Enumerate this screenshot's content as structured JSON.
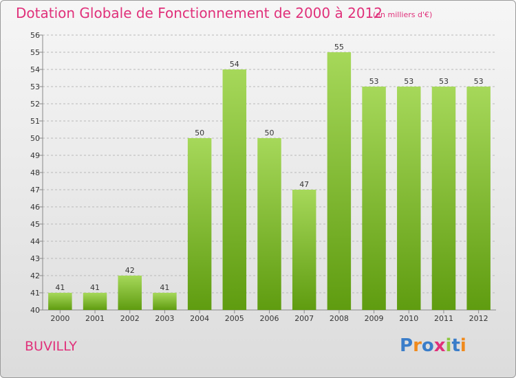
{
  "title": "Dotation Globale de Fonctionnement de 2000 à 2012",
  "subtitle": "(en milliers d'€)",
  "commune": "BUVILLY",
  "logo": {
    "text": "Proxiti",
    "letters": [
      {
        "ch": "P",
        "color": "#3a7dc9"
      },
      {
        "ch": "r",
        "color": "#f08a1c"
      },
      {
        "ch": "o",
        "color": "#3a7dc9"
      },
      {
        "ch": "x",
        "color": "#e0307a"
      },
      {
        "ch": "i",
        "color": "#8dc63f"
      },
      {
        "ch": "t",
        "color": "#3a7dc9"
      },
      {
        "ch": "i",
        "color": "#f08a1c"
      }
    ]
  },
  "colors": {
    "bar_top": "#a6d85a",
    "bar_bottom": "#5f9c10",
    "grid": "#b8b8b8",
    "title": "#e0307a"
  },
  "chart_data": {
    "type": "bar",
    "categories": [
      "2000",
      "2001",
      "2002",
      "2003",
      "2004",
      "2005",
      "2006",
      "2007",
      "2008",
      "2009",
      "2010",
      "2011",
      "2012"
    ],
    "values": [
      41,
      41,
      42,
      41,
      50,
      54,
      50,
      47,
      55,
      53,
      53,
      53,
      53
    ],
    "ylim": [
      40,
      56
    ],
    "yticks": [
      40,
      41,
      42,
      43,
      44,
      45,
      46,
      47,
      48,
      49,
      50,
      51,
      52,
      53,
      54,
      55,
      56
    ],
    "grid": "dashed horizontal",
    "legend": "none"
  }
}
